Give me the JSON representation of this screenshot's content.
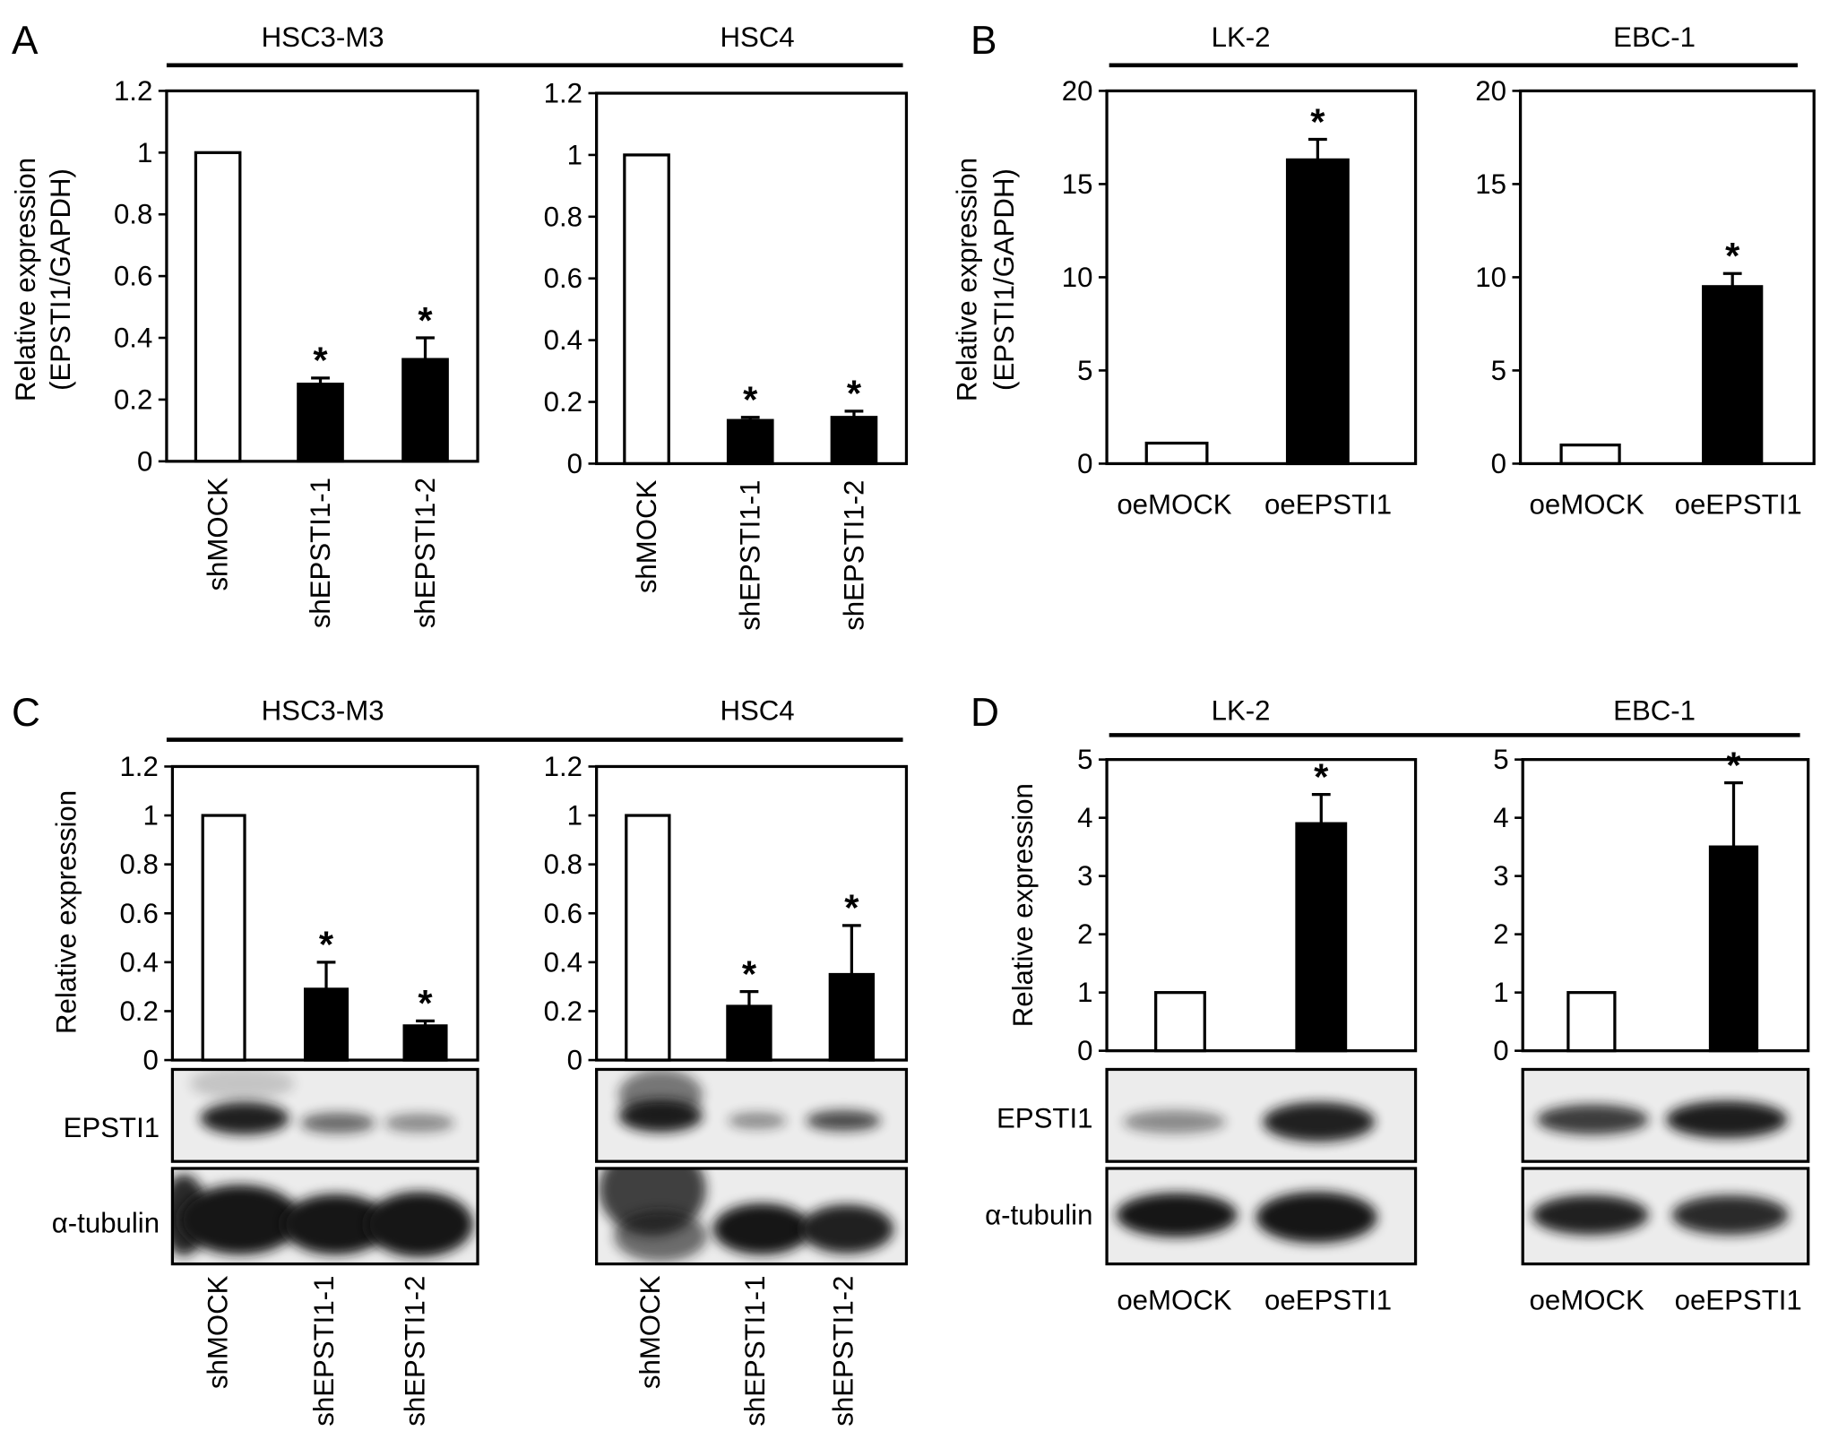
{
  "panels": [
    {
      "letter": "A",
      "blot_rows": []
    },
    {
      "letter": "B",
      "blot_rows": []
    },
    {
      "letter": "C",
      "blot_rows": [
        "EPSTI1",
        "α-tubulin"
      ]
    },
    {
      "letter": "D",
      "blot_rows": [
        "EPSTI1",
        "α-tubulin"
      ]
    }
  ],
  "colors": {
    "control": "#ffffff",
    "treatment": "#000000",
    "blot_background": "#ececec",
    "blot_band": "#141414"
  },
  "chart_data": [
    {
      "type": "bar",
      "title": "HSC3-M3",
      "ylabel": [
        "Relative expression",
        "(EPSTI1/GAPDH)"
      ],
      "categories": [
        "shMOCK",
        "shEPSTI1-1",
        "shEPSTI1-2"
      ],
      "values": [
        1,
        0.25,
        0.33
      ],
      "errors": [
        0,
        0.02,
        0.07
      ],
      "annotations": [
        "",
        "*",
        "*"
      ],
      "ylim": [
        0,
        1.2
      ],
      "yticks": [
        0,
        0.2,
        0.4,
        0.6,
        0.8,
        1,
        1.2
      ],
      "grid": false
    },
    {
      "type": "bar",
      "title": "HSC4",
      "categories": [
        "shMOCK",
        "shEPSTI1-1",
        "shEPSTI1-2"
      ],
      "values": [
        1,
        0.14,
        0.15
      ],
      "errors": [
        0,
        0.01,
        0.02
      ],
      "annotations": [
        "",
        "*",
        "*"
      ],
      "ylim": [
        0,
        1.2
      ],
      "yticks": [
        0,
        0.2,
        0.4,
        0.6,
        0.8,
        1,
        1.2
      ],
      "grid": false
    },
    {
      "type": "bar",
      "title": "LK-2",
      "ylabel": [
        "Relative expression",
        "(EPSTI1/GAPDH)"
      ],
      "categories": [
        "oeMOCK",
        "oeEPSTI1"
      ],
      "values": [
        1.1,
        16.3
      ],
      "errors": [
        0,
        1.1
      ],
      "annotations": [
        "",
        "*"
      ],
      "ylim": [
        0,
        20
      ],
      "yticks": [
        0,
        5,
        10,
        15,
        20
      ],
      "grid": false
    },
    {
      "type": "bar",
      "title": "EBC-1",
      "categories": [
        "oeMOCK",
        "oeEPSTI1"
      ],
      "values": [
        1,
        9.5
      ],
      "errors": [
        0,
        0.7
      ],
      "annotations": [
        "",
        "*"
      ],
      "ylim": [
        0,
        20
      ],
      "yticks": [
        0,
        5,
        10,
        15,
        20
      ],
      "grid": false
    },
    {
      "type": "bar",
      "title": "HSC3-M3",
      "ylabel": [
        "Relative expression"
      ],
      "categories": [
        "shMOCK",
        "shEPSTI1-1",
        "shEPSTI1-2"
      ],
      "values": [
        1,
        0.29,
        0.14
      ],
      "errors": [
        0,
        0.11,
        0.02
      ],
      "annotations": [
        "",
        "*",
        "*"
      ],
      "ylim": [
        0,
        1.2
      ],
      "yticks": [
        0,
        0.2,
        0.4,
        0.6,
        0.8,
        1,
        1.2
      ],
      "grid": false
    },
    {
      "type": "bar",
      "title": "HSC4",
      "categories": [
        "shMOCK",
        "shEPSTI1-1",
        "shEPSTI1-2"
      ],
      "values": [
        1,
        0.22,
        0.35
      ],
      "errors": [
        0,
        0.06,
        0.2
      ],
      "annotations": [
        "",
        "*",
        "*"
      ],
      "ylim": [
        0,
        1.2
      ],
      "yticks": [
        0,
        0.2,
        0.4,
        0.6,
        0.8,
        1,
        1.2
      ],
      "grid": false
    },
    {
      "type": "bar",
      "title": "LK-2",
      "ylabel": [
        "Relative expression"
      ],
      "categories": [
        "oeMOCK",
        "oeEPSTI1"
      ],
      "values": [
        1,
        3.9
      ],
      "errors": [
        0,
        0.5
      ],
      "annotations": [
        "",
        "*"
      ],
      "ylim": [
        0,
        5
      ],
      "yticks": [
        0,
        1,
        2,
        3,
        4,
        5
      ],
      "grid": false
    },
    {
      "type": "bar",
      "title": "EBC-1",
      "categories": [
        "oeMOCK",
        "oeEPSTI1"
      ],
      "values": [
        1,
        3.5
      ],
      "errors": [
        0,
        1.1
      ],
      "annotations": [
        "",
        "*"
      ],
      "ylim": [
        0,
        5
      ],
      "yticks": [
        0,
        1,
        2,
        3,
        4,
        5
      ],
      "grid": false
    }
  ]
}
